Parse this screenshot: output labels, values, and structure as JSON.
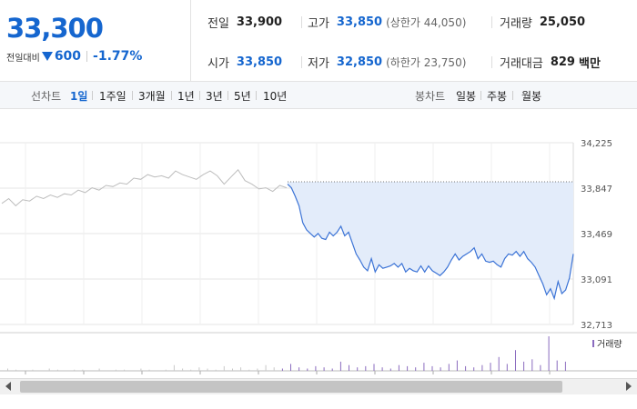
{
  "quote": {
    "price": "33,300",
    "change_label": "전일대비",
    "change_icon": "down-triangle-icon",
    "change_amount": "600",
    "change_rate": "-1.77%",
    "colors": {
      "down": "#1566cf",
      "line": "#3b73d6",
      "fill": "#e3ecfa",
      "history": "#bdbdbd"
    }
  },
  "stats": {
    "prev_close": {
      "label": "전일",
      "value": "33,900"
    },
    "high": {
      "label": "고가",
      "value": "33,850",
      "limit_text": "(상한가 44,050)"
    },
    "volume": {
      "label": "거래량",
      "value": "25,050"
    },
    "open": {
      "label": "시가",
      "value": "33,850"
    },
    "low": {
      "label": "저가",
      "value": "32,850",
      "limit_text": "(하한가 23,750)"
    },
    "trade_value": {
      "label": "거래대금",
      "value": "829",
      "unit": "백만"
    }
  },
  "range_tabs": {
    "title": "선차트",
    "items": [
      "1일",
      "1주일",
      "3개월",
      "1년",
      "3년",
      "5년",
      "10년"
    ],
    "active": "1일"
  },
  "candle_tabs": {
    "title": "봉차트",
    "items": [
      "일봉",
      "주봉",
      "월봉"
    ]
  },
  "chart_data": {
    "type": "line",
    "y_ticks": [
      "34,225",
      "33,847",
      "33,469",
      "33,091",
      "32,713"
    ],
    "ylim": [
      32713,
      34225
    ],
    "reference_price": 33900,
    "history_series": [
      33720,
      33760,
      33700,
      33750,
      33740,
      33780,
      33760,
      33790,
      33770,
      33800,
      33790,
      33830,
      33810,
      33850,
      33830,
      33870,
      33860,
      33890,
      33880,
      33930,
      33920,
      33960,
      33940,
      33950,
      33930,
      33990,
      33960,
      33940,
      33920,
      33960,
      33990,
      33950,
      33880,
      33940,
      34000,
      33910,
      33880,
      33840,
      33850,
      33820,
      33870,
      33850
    ],
    "today_series": [
      33880,
      33850,
      33780,
      33700,
      33560,
      33500,
      33470,
      33440,
      33470,
      33430,
      33420,
      33480,
      33450,
      33480,
      33530,
      33450,
      33480,
      33390,
      33300,
      33250,
      33190,
      33160,
      33260,
      33150,
      33210,
      33180,
      33190,
      33200,
      33220,
      33190,
      33220,
      33150,
      33180,
      33160,
      33150,
      33200,
      33150,
      33200,
      33160,
      33140,
      33120,
      33150,
      33190,
      33250,
      33300,
      33250,
      33280,
      33300,
      33320,
      33350,
      33260,
      33300,
      33240,
      33230,
      33240,
      33210,
      33190,
      33260,
      33300,
      33290,
      33320,
      33280,
      33320,
      33260,
      33230,
      33190,
      33120,
      33050,
      32960,
      33010,
      32930,
      33070,
      32970,
      33000,
      33100,
      33300
    ],
    "volume_legend": "거래량",
    "volume_bars": [
      2,
      1,
      0,
      1,
      0,
      2,
      1,
      0,
      1,
      1,
      0,
      2,
      0,
      1,
      1,
      0,
      2,
      1,
      0,
      1,
      5,
      2,
      1,
      3,
      2,
      1,
      4,
      2,
      3,
      1,
      2,
      5,
      3,
      2,
      6,
      3,
      2,
      4,
      3,
      2,
      8,
      5,
      3,
      4,
      6,
      3,
      2,
      5,
      4,
      3,
      7,
      4,
      3,
      6,
      9,
      4,
      3,
      5,
      7,
      12,
      6,
      18,
      8,
      10,
      5,
      30,
      9,
      8
    ]
  }
}
